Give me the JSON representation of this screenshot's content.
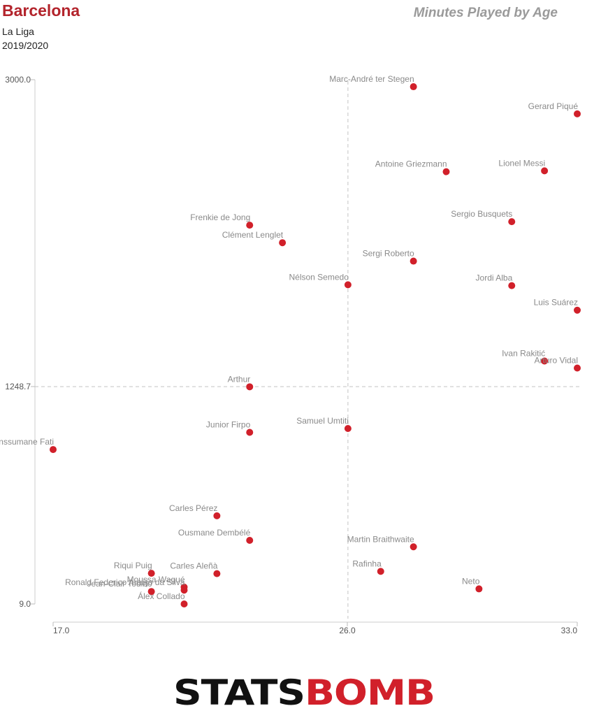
{
  "header": {
    "team": "Barcelona",
    "competition": "La Liga",
    "season": "2019/2020",
    "chart_title": "Minutes Played by Age"
  },
  "logo": {
    "part1": "STATS",
    "part2": "BOMB",
    "color1": "#111111",
    "color2": "#d1202a"
  },
  "chart_data": {
    "type": "scatter",
    "title": "Minutes Played by Age",
    "xlabel": "",
    "ylabel": "",
    "xlim": [
      17.0,
      33.0
    ],
    "ylim": [
      9.0,
      3000.0
    ],
    "x_ticks": [
      "17.0",
      "26.0",
      "33.0"
    ],
    "y_ticks": [
      "3000.0",
      "1248.7",
      "9.0"
    ],
    "reference_lines": {
      "x": 26.0,
      "y": 1248.7
    },
    "point_color": "#d1202a",
    "points": [
      {
        "name": "Marc-André ter Stegen",
        "x": 28,
        "y": 2960
      },
      {
        "name": "Gerard Piqué",
        "x": 33,
        "y": 2805
      },
      {
        "name": "Antoine Griezmann",
        "x": 29,
        "y": 2475
      },
      {
        "name": "Lionel Messi",
        "x": 32,
        "y": 2480
      },
      {
        "name": "Sergio Busquets",
        "x": 31,
        "y": 2190
      },
      {
        "name": "Frenkie de Jong",
        "x": 23,
        "y": 2170
      },
      {
        "name": "Clément Lenglet",
        "x": 24,
        "y": 2070
      },
      {
        "name": "Sergi Roberto",
        "x": 28,
        "y": 1965
      },
      {
        "name": "Nélson Semedo",
        "x": 26,
        "y": 1830
      },
      {
        "name": "Jordi Alba",
        "x": 31,
        "y": 1825
      },
      {
        "name": "Luis Suárez",
        "x": 33,
        "y": 1685
      },
      {
        "name": "Ivan Rakitić",
        "x": 32,
        "y": 1395
      },
      {
        "name": "Arturo Vidal",
        "x": 33,
        "y": 1355
      },
      {
        "name": "Arthur",
        "x": 23,
        "y": 1248
      },
      {
        "name": "Samuel Umtiti",
        "x": 26,
        "y": 1010
      },
      {
        "name": "Junior Firpo",
        "x": 23,
        "y": 988
      },
      {
        "name": "Anssumane Fati",
        "x": 17,
        "y": 890
      },
      {
        "name": "Carles Pérez",
        "x": 22,
        "y": 512
      },
      {
        "name": "Ousmane Dembélé",
        "x": 23,
        "y": 372
      },
      {
        "name": "Martin Braithwaite",
        "x": 28,
        "y": 335
      },
      {
        "name": "Rafinha",
        "x": 27,
        "y": 195
      },
      {
        "name": "Riqui Puig",
        "x": 20,
        "y": 184
      },
      {
        "name": "Carles Aleñà",
        "x": 22,
        "y": 182
      },
      {
        "name": "Moussa Wagué",
        "x": 21,
        "y": 105
      },
      {
        "name": "Neto",
        "x": 30,
        "y": 95
      },
      {
        "name": "Ronald Federico Araújo da Silva",
        "x": 21,
        "y": 88
      },
      {
        "name": "Jean-Clair Todibo",
        "x": 20,
        "y": 80
      },
      {
        "name": "Álex Collado",
        "x": 21,
        "y": 9
      }
    ]
  }
}
